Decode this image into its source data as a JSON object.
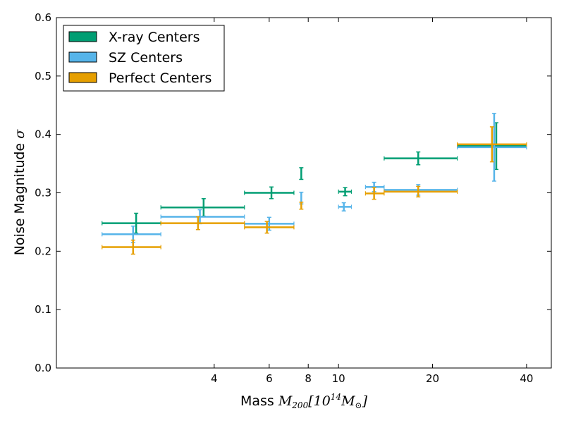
{
  "chart_data": {
    "type": "errorbar",
    "xscale": "log",
    "xlim": [
      1.25,
      48
    ],
    "ylim": [
      0.0,
      0.6
    ],
    "xlabel": {
      "prefix": "Mass ",
      "math": "M",
      "math_sub": "200",
      "bracket_open": "[10",
      "bracket_sup": "14",
      "math2": "M",
      "math2_sub": "⊙",
      "bracket_close": "]"
    },
    "ylabel": {
      "prefix": "Noise Magnitude ",
      "math": "σ"
    },
    "x_ticks": [
      4,
      6,
      8,
      10,
      20,
      40
    ],
    "x_tick_labels": [
      "4",
      "6",
      "8",
      "10",
      "20",
      "40"
    ],
    "y_ticks": [
      0.0,
      0.1,
      0.2,
      0.3,
      0.4,
      0.5,
      0.6
    ],
    "y_tick_labels": [
      "0.0",
      "0.1",
      "0.2",
      "0.3",
      "0.4",
      "0.5",
      "0.6"
    ],
    "legend_position": "top-left",
    "series": [
      {
        "name": "X-ray Centers",
        "color": "#009e73",
        "points": [
          {
            "xmin": 1.75,
            "xmax": 2.7,
            "xc": 2.25,
            "y": 0.248,
            "yerr": 0.017
          },
          {
            "xmin": 2.7,
            "xmax": 5.0,
            "xc": 3.7,
            "y": 0.275,
            "yerr": 0.015
          },
          {
            "xmin": 5.0,
            "xmax": 7.2,
            "xc": 6.1,
            "y": 0.3,
            "yerr": 0.01
          },
          {
            "xmin": 7.6,
            "xmax": 7.6,
            "xc": 7.6,
            "y": 0.333,
            "yerr": 0.01
          },
          {
            "xmin": 10.0,
            "xmax": 11.0,
            "xc": 10.5,
            "y": 0.302,
            "yerr": 0.007
          },
          {
            "xmin": 14.0,
            "xmax": 24.0,
            "xc": 18.0,
            "y": 0.359,
            "yerr": 0.011
          },
          {
            "xmin": 24.0,
            "xmax": 40.0,
            "xc": 32.0,
            "y": 0.38,
            "yerr": 0.04
          }
        ]
      },
      {
        "name": "SZ Centers",
        "color": "#56b4e9",
        "points": [
          {
            "xmin": 1.75,
            "xmax": 2.7,
            "xc": 2.2,
            "y": 0.229,
            "yerr": 0.014
          },
          {
            "xmin": 2.7,
            "xmax": 5.0,
            "xc": 3.6,
            "y": 0.259,
            "yerr": 0.012
          },
          {
            "xmin": 5.0,
            "xmax": 7.2,
            "xc": 6.0,
            "y": 0.247,
            "yerr": 0.011
          },
          {
            "xmin": 7.6,
            "xmax": 7.6,
            "xc": 7.6,
            "y": 0.291,
            "yerr": 0.01
          },
          {
            "xmin": 10.0,
            "xmax": 11.0,
            "xc": 10.4,
            "y": 0.276,
            "yerr": 0.007
          },
          {
            "xmin": 12.2,
            "xmax": 14.0,
            "xc": 13.0,
            "y": 0.31,
            "yerr": 0.008
          },
          {
            "xmin": 14.0,
            "xmax": 24.0,
            "xc": 18.0,
            "y": 0.305,
            "yerr": 0.009
          },
          {
            "xmin": 24.0,
            "xmax": 40.0,
            "xc": 31.5,
            "y": 0.378,
            "yerr": 0.058
          }
        ]
      },
      {
        "name": "Perfect Centers",
        "color": "#e69f00",
        "points": [
          {
            "xmin": 1.75,
            "xmax": 2.7,
            "xc": 2.2,
            "y": 0.207,
            "yerr": 0.012
          },
          {
            "xmin": 2.7,
            "xmax": 5.0,
            "xc": 3.55,
            "y": 0.248,
            "yerr": 0.011
          },
          {
            "xmin": 5.0,
            "xmax": 7.2,
            "xc": 5.9,
            "y": 0.241,
            "yerr": 0.01
          },
          {
            "xmin": 7.6,
            "xmax": 7.6,
            "xc": 7.6,
            "y": 0.278,
            "yerr": 0.006
          },
          {
            "xmin": 12.2,
            "xmax": 14.0,
            "xc": 13.0,
            "y": 0.299,
            "yerr": 0.01
          },
          {
            "xmin": 14.0,
            "xmax": 24.0,
            "xc": 18.0,
            "y": 0.302,
            "yerr": 0.009
          },
          {
            "xmin": 24.0,
            "xmax": 40.0,
            "xc": 31.0,
            "y": 0.383,
            "yerr": 0.03
          }
        ]
      }
    ]
  }
}
